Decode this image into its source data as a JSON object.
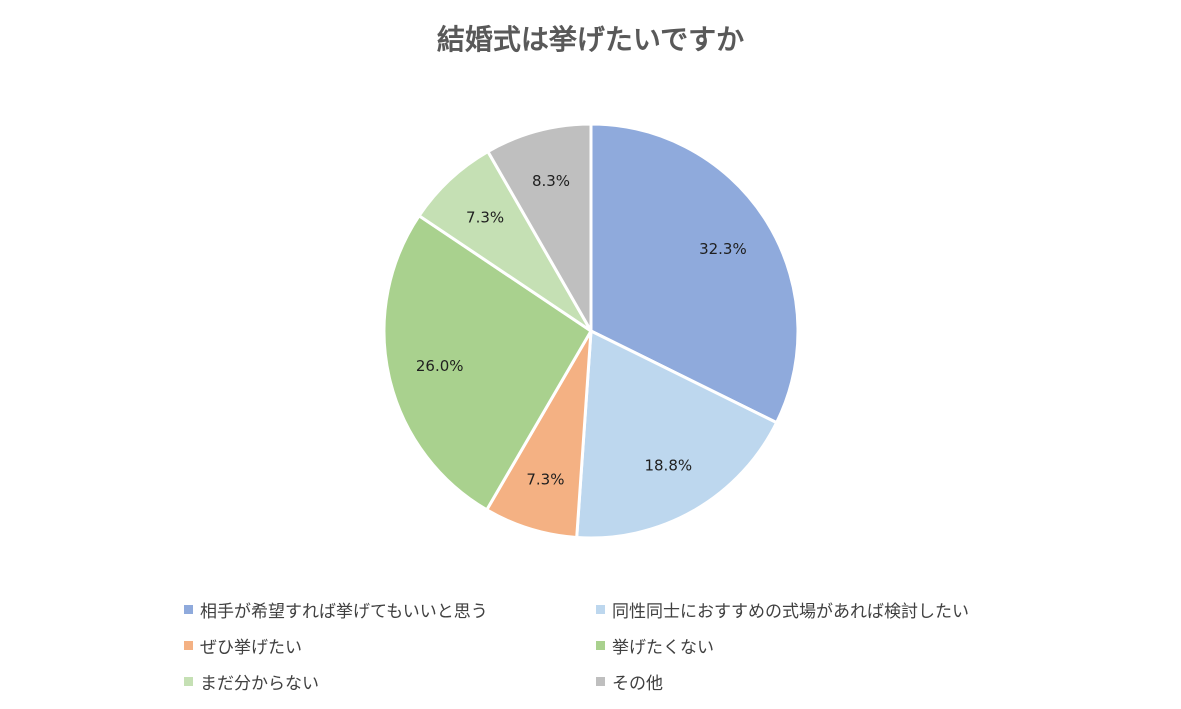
{
  "chart_data": {
    "type": "pie",
    "title": "結婚式は挙げたいですか",
    "legend_position": "bottom",
    "slices": [
      {
        "label": "相手が希望すれば挙げてもいいと思う",
        "value": 32.3,
        "value_label": "32.3%",
        "color": "#8FAADC"
      },
      {
        "label": "同性同士におすすめの式場があれば検討したい",
        "value": 18.8,
        "value_label": "18.8%",
        "color": "#BDD7EE"
      },
      {
        "label": "ぜひ挙げたい",
        "value": 7.3,
        "value_label": "7.3%",
        "color": "#F4B183"
      },
      {
        "label": "挙げたくない",
        "value": 26.0,
        "value_label": "26.0%",
        "color": "#A9D18E"
      },
      {
        "label": "まだ分からない",
        "value": 7.3,
        "value_label": "7.3%",
        "color": "#C5E0B4"
      },
      {
        "label": "その他",
        "value": 8.3,
        "value_label": "8.3%",
        "color": "#BFBFBF"
      }
    ]
  }
}
